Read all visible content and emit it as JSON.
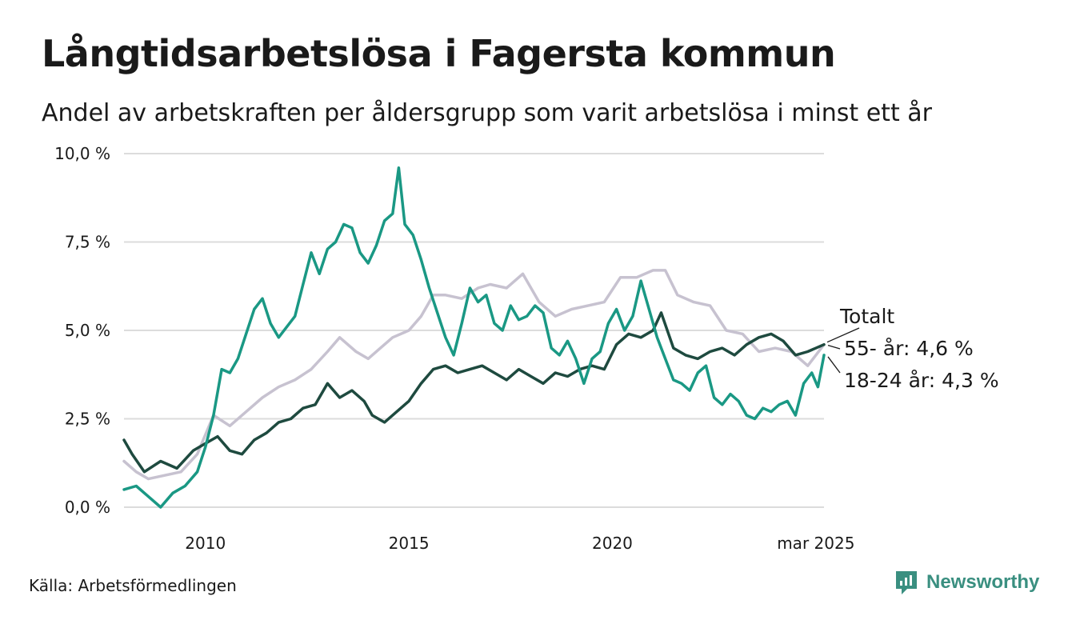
{
  "header": {
    "title": "Långtidsarbetslösa i Fagersta kommun",
    "subtitle": "Andel av arbetskraften per åldersgrupp som varit arbetslösa i minst ett år"
  },
  "footer": {
    "source": "Källa: Arbetsförmedlingen",
    "brand": "Newsworthy"
  },
  "colors": {
    "total": "#c7c2d0",
    "age55": "#1e4a3f",
    "age18_24": "#1a9884",
    "grid": "#dcdcdc",
    "brand": "#3a8f80"
  },
  "chart_data": {
    "type": "line",
    "title": "Långtidsarbetslösa i Fagersta kommun",
    "subtitle": "Andel av arbetskraften per åldersgrupp som varit arbetslösa i minst ett år",
    "xlabel": "",
    "ylabel": "",
    "xlim": [
      2008.0,
      2025.2
    ],
    "ylim": [
      0,
      10
    ],
    "grid": true,
    "y_ticks": [
      {
        "value": 0,
        "label": "0,0 %"
      },
      {
        "value": 2.5,
        "label": "2,5 %"
      },
      {
        "value": 5,
        "label": "5,0 %"
      },
      {
        "value": 7.5,
        "label": "7,5 %"
      },
      {
        "value": 10,
        "label": "10,0 %"
      }
    ],
    "x_ticks": [
      {
        "value": 2010,
        "label": "2010"
      },
      {
        "value": 2015,
        "label": "2015"
      },
      {
        "value": 2020,
        "label": "2020"
      },
      {
        "value": 2025,
        "label": "mar 2025"
      }
    ],
    "series": [
      {
        "name": "Totalt",
        "label": "Totalt",
        "color": "#c7c2d0",
        "x": [
          2008.0,
          2008.3,
          2008.6,
          2009.0,
          2009.4,
          2009.8,
          2010.2,
          2010.6,
          2011.0,
          2011.4,
          2011.8,
          2012.2,
          2012.6,
          2013.0,
          2013.3,
          2013.7,
          2014.0,
          2014.3,
          2014.6,
          2015.0,
          2015.3,
          2015.6,
          2015.9,
          2016.3,
          2016.7,
          2017.0,
          2017.4,
          2017.8,
          2018.2,
          2018.6,
          2019.0,
          2019.4,
          2019.8,
          2020.2,
          2020.6,
          2021.0,
          2021.3,
          2021.6,
          2022.0,
          2022.4,
          2022.8,
          2023.2,
          2023.6,
          2024.0,
          2024.4,
          2024.8,
          2025.2
        ],
        "values": [
          1.3,
          1.0,
          0.8,
          0.9,
          1.0,
          1.5,
          2.6,
          2.3,
          2.7,
          3.1,
          3.4,
          3.6,
          3.9,
          4.4,
          4.8,
          4.4,
          4.2,
          4.5,
          4.8,
          5.0,
          5.4,
          6.0,
          6.0,
          5.9,
          6.2,
          6.3,
          6.2,
          6.6,
          5.8,
          5.4,
          5.6,
          5.7,
          5.8,
          6.5,
          6.5,
          6.7,
          6.7,
          6.0,
          5.8,
          5.7,
          5.0,
          4.9,
          4.4,
          4.5,
          4.4,
          4.0,
          4.6
        ]
      },
      {
        "name": "55- år",
        "label": "55- år: 4,6 %",
        "color": "#1e4a3f",
        "x": [
          2008.0,
          2008.2,
          2008.5,
          2008.9,
          2009.3,
          2009.7,
          2010.0,
          2010.3,
          2010.6,
          2010.9,
          2011.2,
          2011.5,
          2011.8,
          2012.1,
          2012.4,
          2012.7,
          2013.0,
          2013.3,
          2013.6,
          2013.9,
          2014.1,
          2014.4,
          2014.7,
          2015.0,
          2015.3,
          2015.6,
          2015.9,
          2016.2,
          2016.5,
          2016.8,
          2017.1,
          2017.4,
          2017.7,
          2018.0,
          2018.3,
          2018.6,
          2018.9,
          2019.2,
          2019.5,
          2019.8,
          2020.1,
          2020.4,
          2020.7,
          2021.0,
          2021.2,
          2021.5,
          2021.8,
          2022.1,
          2022.4,
          2022.7,
          2023.0,
          2023.3,
          2023.6,
          2023.9,
          2024.2,
          2024.5,
          2024.8,
          2025.2
        ],
        "values": [
          1.9,
          1.5,
          1.0,
          1.3,
          1.1,
          1.6,
          1.8,
          2.0,
          1.6,
          1.5,
          1.9,
          2.1,
          2.4,
          2.5,
          2.8,
          2.9,
          3.5,
          3.1,
          3.3,
          3.0,
          2.6,
          2.4,
          2.7,
          3.0,
          3.5,
          3.9,
          4.0,
          3.8,
          3.9,
          4.0,
          3.8,
          3.6,
          3.9,
          3.7,
          3.5,
          3.8,
          3.7,
          3.9,
          4.0,
          3.9,
          4.6,
          4.9,
          4.8,
          5.0,
          5.5,
          4.5,
          4.3,
          4.2,
          4.4,
          4.5,
          4.3,
          4.6,
          4.8,
          4.9,
          4.7,
          4.3,
          4.4,
          4.6
        ]
      },
      {
        "name": "18-24 år",
        "label": "18-24 år: 4,3 %",
        "color": "#1a9884",
        "x": [
          2008.0,
          2008.3,
          2008.6,
          2008.9,
          2009.2,
          2009.5,
          2009.8,
          2010.0,
          2010.2,
          2010.4,
          2010.6,
          2010.8,
          2011.0,
          2011.2,
          2011.4,
          2011.6,
          2011.8,
          2012.0,
          2012.2,
          2012.4,
          2012.6,
          2012.8,
          2013.0,
          2013.2,
          2013.4,
          2013.6,
          2013.8,
          2014.0,
          2014.2,
          2014.4,
          2014.6,
          2014.75,
          2014.9,
          2015.1,
          2015.3,
          2015.5,
          2015.7,
          2015.9,
          2016.1,
          2016.3,
          2016.5,
          2016.7,
          2016.9,
          2017.1,
          2017.3,
          2017.5,
          2017.7,
          2017.9,
          2018.1,
          2018.3,
          2018.5,
          2018.7,
          2018.9,
          2019.1,
          2019.3,
          2019.5,
          2019.7,
          2019.9,
          2020.1,
          2020.3,
          2020.5,
          2020.7,
          2020.9,
          2021.1,
          2021.3,
          2021.5,
          2021.7,
          2021.9,
          2022.1,
          2022.3,
          2022.5,
          2022.7,
          2022.9,
          2023.1,
          2023.3,
          2023.5,
          2023.7,
          2023.9,
          2024.1,
          2024.3,
          2024.5,
          2024.7,
          2024.9,
          2025.05,
          2025.2
        ],
        "values": [
          0.5,
          0.6,
          0.3,
          0.0,
          0.4,
          0.6,
          1.0,
          1.7,
          2.6,
          3.9,
          3.8,
          4.2,
          4.9,
          5.6,
          5.9,
          5.2,
          4.8,
          5.1,
          5.4,
          6.3,
          7.2,
          6.6,
          7.3,
          7.5,
          8.0,
          7.9,
          7.2,
          6.9,
          7.4,
          8.1,
          8.3,
          9.6,
          8.0,
          7.7,
          7.0,
          6.2,
          5.5,
          4.8,
          4.3,
          5.2,
          6.2,
          5.8,
          6.0,
          5.2,
          5.0,
          5.7,
          5.3,
          5.4,
          5.7,
          5.5,
          4.5,
          4.3,
          4.7,
          4.2,
          3.5,
          4.2,
          4.4,
          5.2,
          5.6,
          5.0,
          5.4,
          6.4,
          5.6,
          4.8,
          4.2,
          3.6,
          3.5,
          3.3,
          3.8,
          4.0,
          3.1,
          2.9,
          3.2,
          3.0,
          2.6,
          2.5,
          2.8,
          2.7,
          2.9,
          3.0,
          2.6,
          3.5,
          3.8,
          3.4,
          4.3
        ]
      }
    ],
    "end_labels": {
      "total": "Totalt",
      "age55": "55- år: 4,6 %",
      "age18_24": "18-24 år: 4,3 %"
    }
  }
}
